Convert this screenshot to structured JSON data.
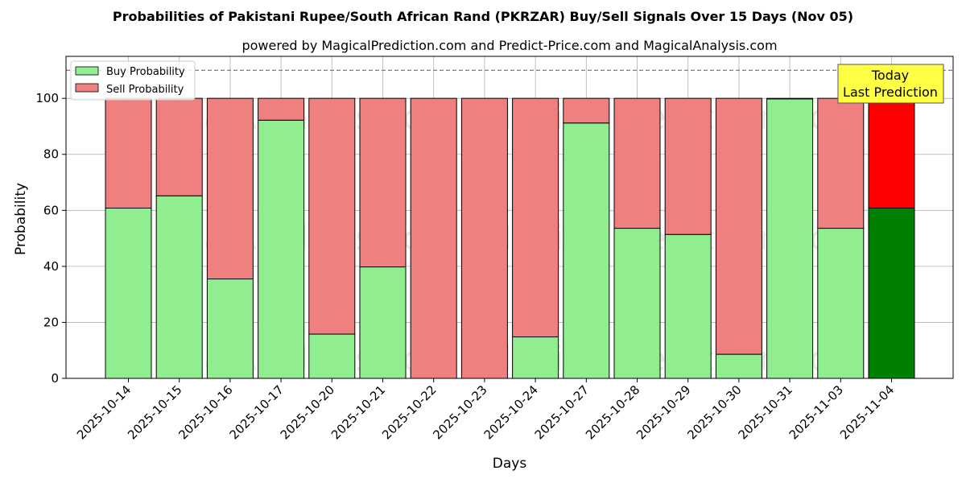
{
  "chart_data": {
    "type": "bar",
    "stacked": true,
    "title": "Probabilities of Pakistani Rupee/South African Rand (PKRZAR) Buy/Sell Signals Over 15 Days (Nov 05)",
    "subtitle": "powered by MagicalPrediction.com and Predict-Price.com and MagicalAnalysis.com",
    "xlabel": "Days",
    "ylabel": "Probability",
    "ylim": [
      0,
      115
    ],
    "yticks": [
      0,
      20,
      40,
      60,
      80,
      100
    ],
    "grid": true,
    "legend_position": "top-left",
    "reference_line": 110,
    "categories": [
      "2025-10-14",
      "2025-10-15",
      "2025-10-16",
      "2025-10-17",
      "2025-10-20",
      "2025-10-21",
      "2025-10-22",
      "2025-10-23",
      "2025-10-24",
      "2025-10-27",
      "2025-10-28",
      "2025-10-29",
      "2025-10-30",
      "2025-10-31",
      "2025-11-03",
      "2025-11-04"
    ],
    "series": [
      {
        "name": "Buy Probability",
        "color": "#90EE90",
        "highlight_color": "#008000",
        "values": [
          60.8,
          65.2,
          35.5,
          92.2,
          15.8,
          39.8,
          0,
          0,
          14.8,
          91.2,
          53.6,
          51.4,
          8.6,
          99.8,
          53.6,
          60.8
        ]
      },
      {
        "name": "Sell Probability",
        "color": "#F08080",
        "highlight_color": "#FF0000",
        "values": [
          39.2,
          34.8,
          64.5,
          7.8,
          84.2,
          60.2,
          100,
          100,
          85.2,
          8.8,
          46.4,
          48.6,
          91.4,
          0.2,
          46.4,
          39.2
        ]
      }
    ],
    "annotation": {
      "line1": "Today",
      "line2": "Last Prediction",
      "color": "#FFFF44"
    },
    "watermarks": [
      "MagicalAnalysis.com",
      "MagicalPrediction.com"
    ]
  }
}
